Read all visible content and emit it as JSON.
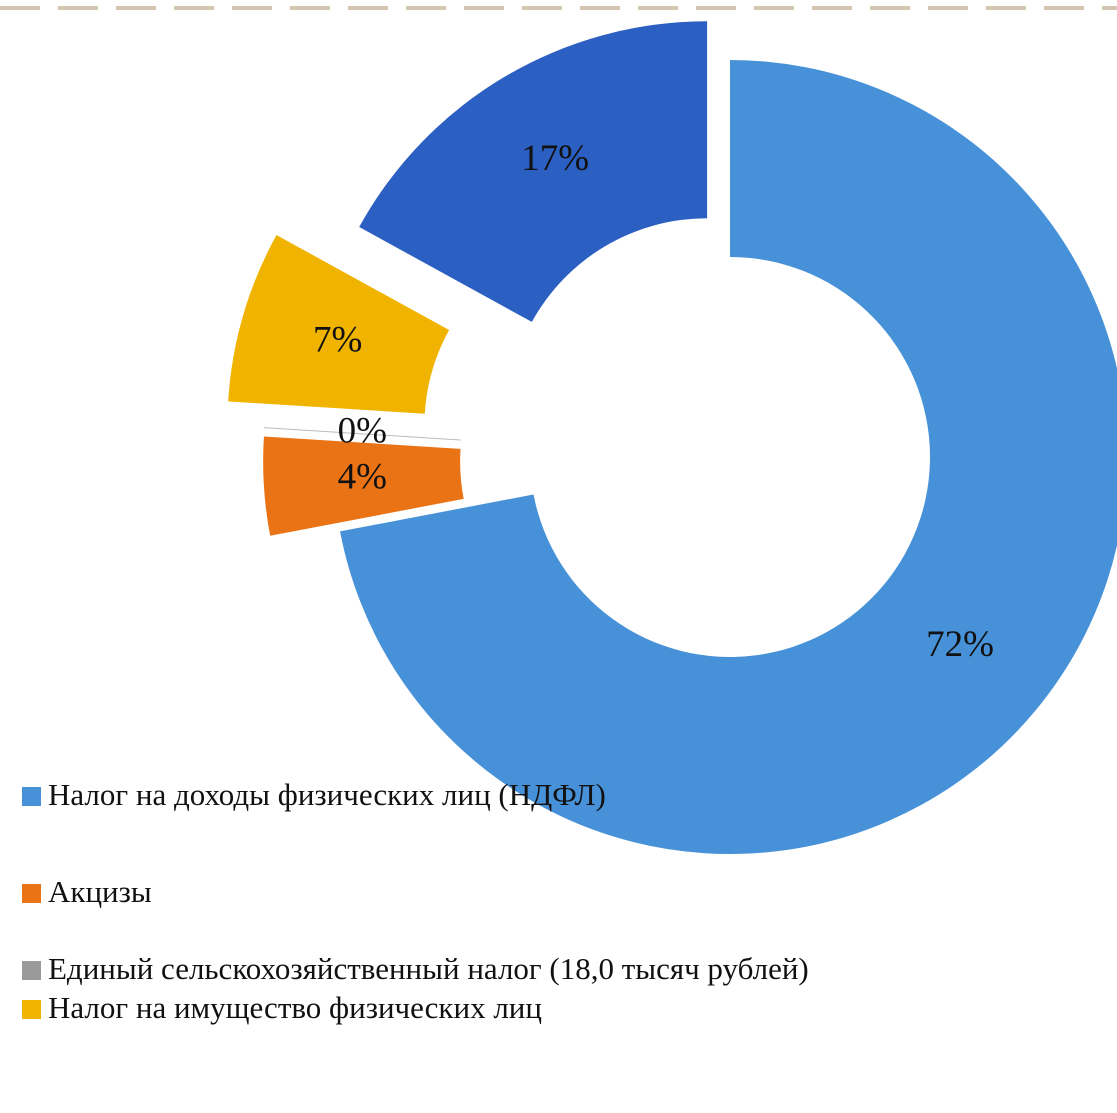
{
  "chart_data": {
    "type": "donut",
    "categories": [
      "Налог на доходы физических лиц (НДФЛ)",
      "Акцизы",
      "Единый сельскохозяйственный налог (18,0 тысяч рублей)",
      "Налог на имущество физических лиц",
      null
    ],
    "values": [
      72,
      4,
      0,
      7,
      17
    ],
    "value_labels": [
      "72%",
      "4%",
      "0%",
      "7%",
      "17%"
    ],
    "colors": [
      "#4791d8",
      "#ea7415",
      "#9a9a9a",
      "#f0b400",
      "#2c5fc2"
    ]
  }
}
